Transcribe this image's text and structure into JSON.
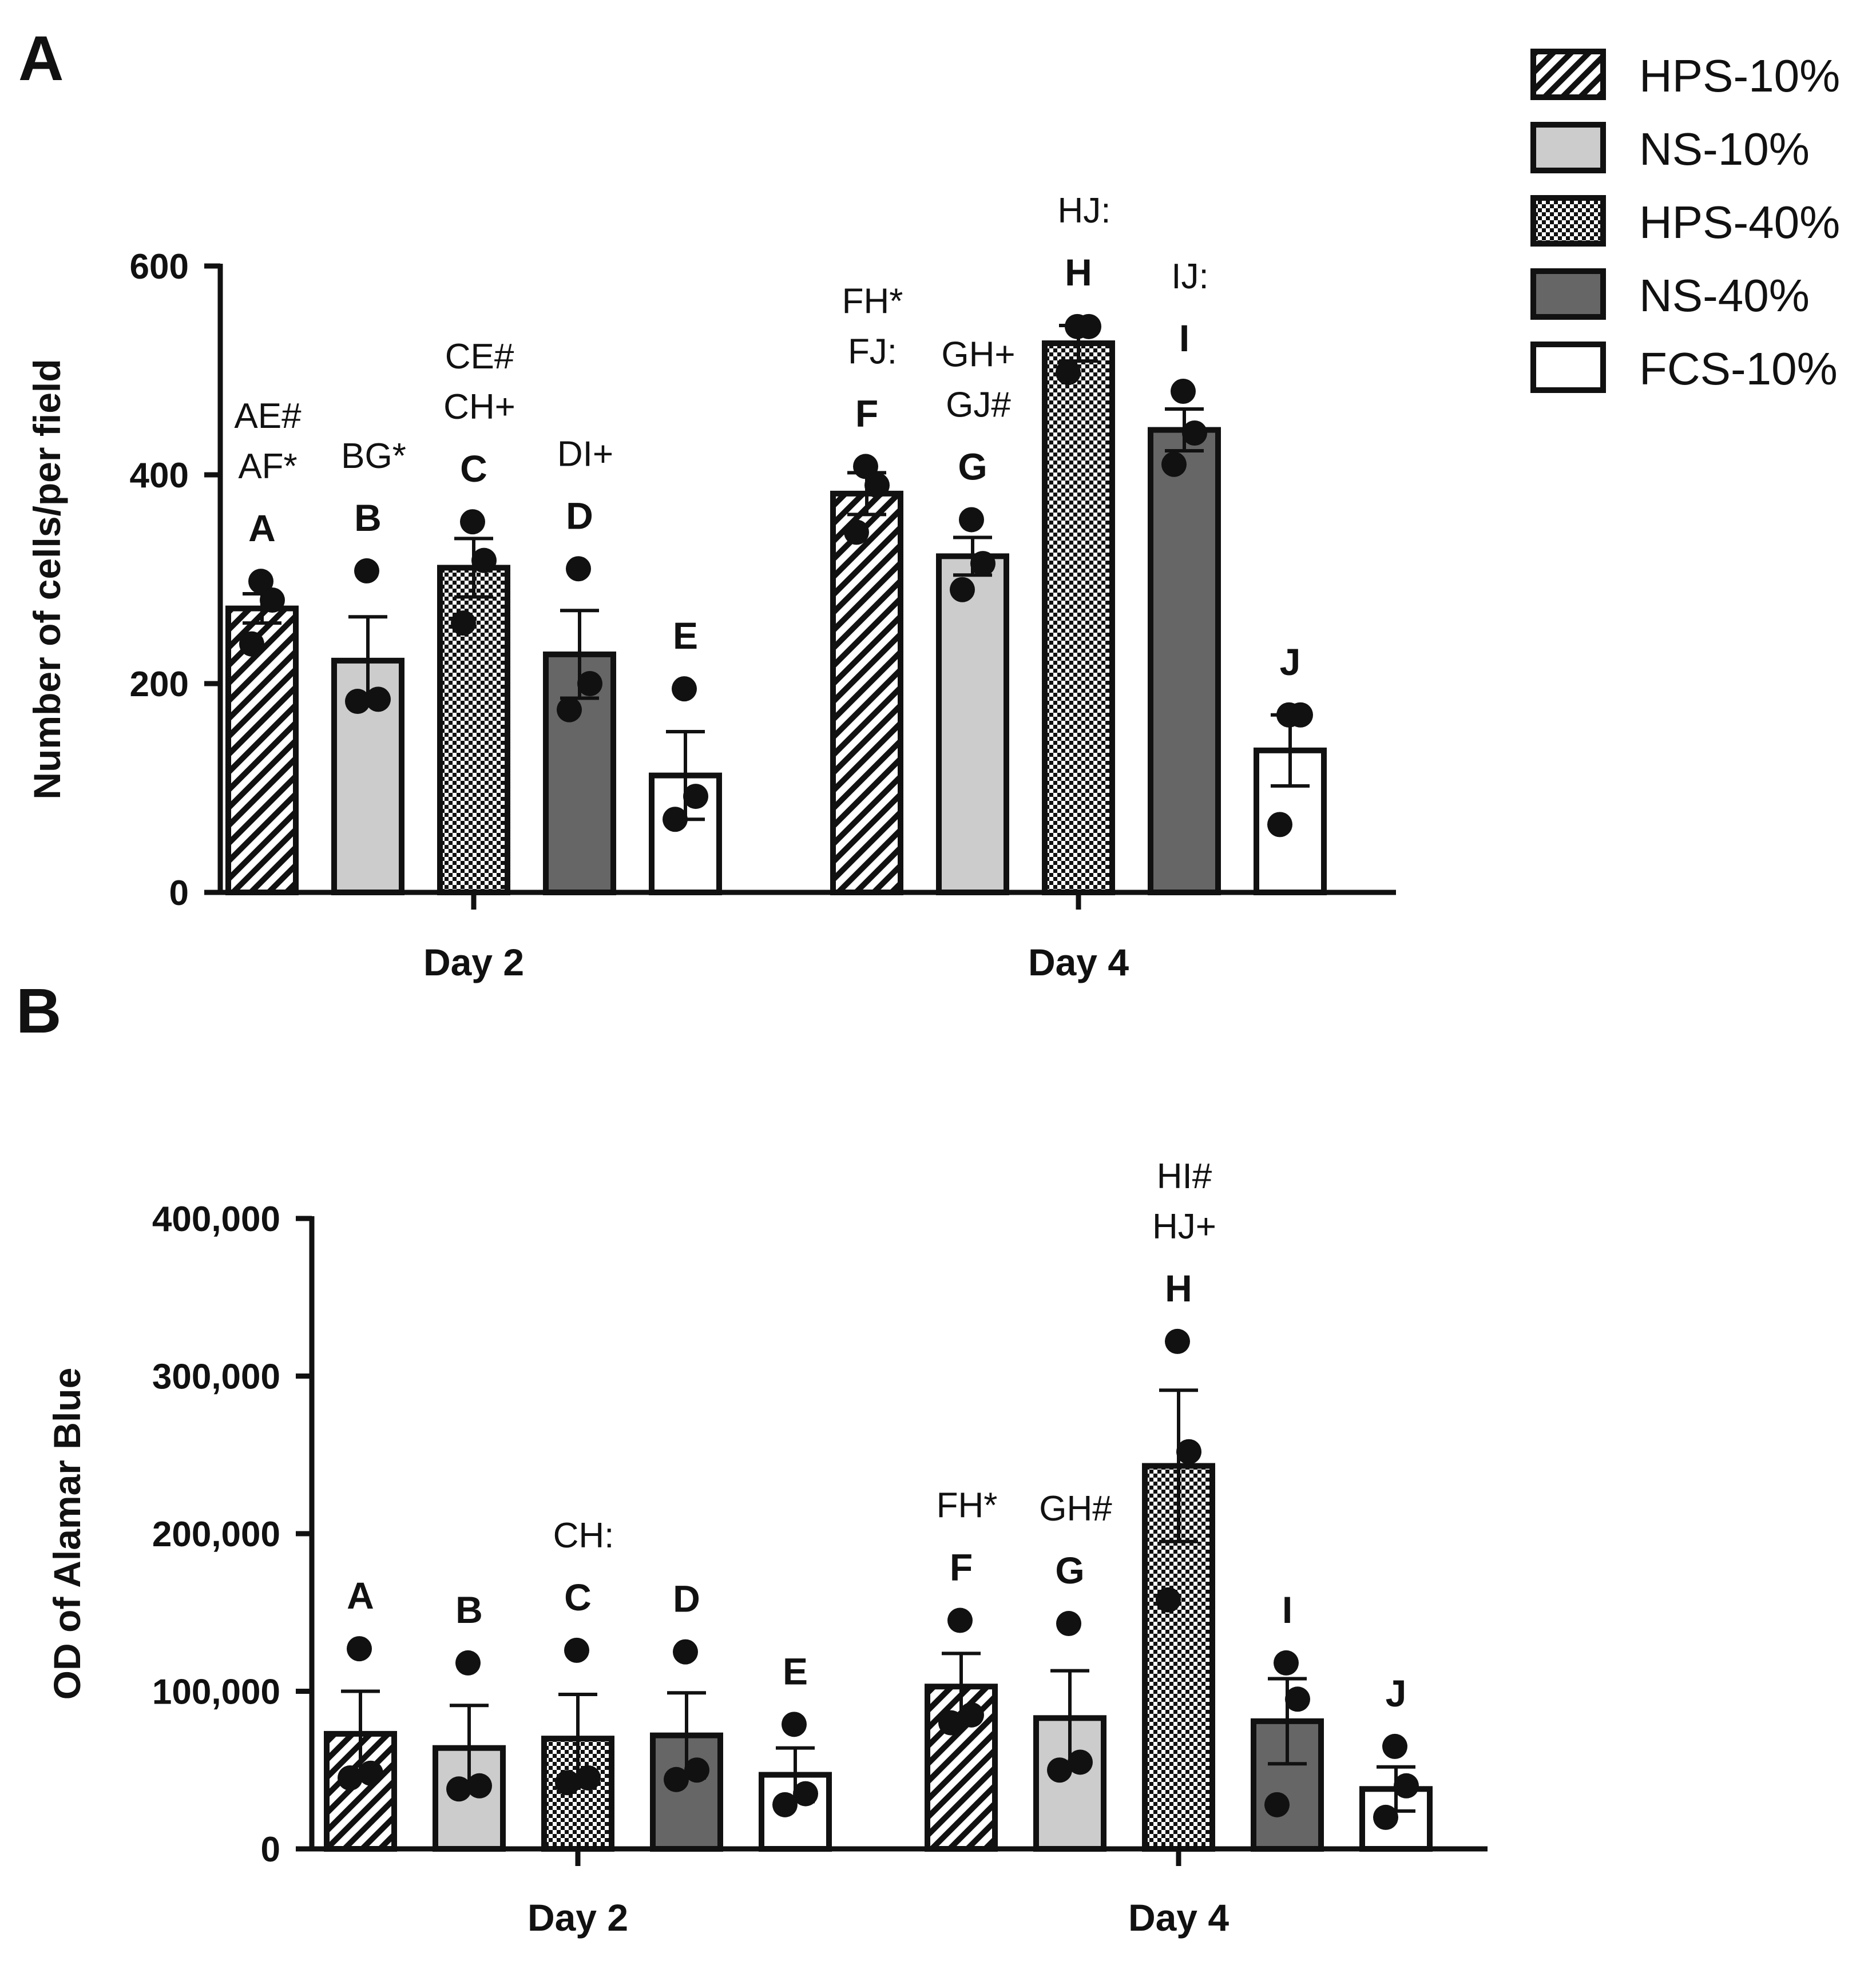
{
  "series": [
    {
      "key": "hps10",
      "name": "HPS-10%",
      "pattern": "hatch",
      "fill": "#ffffff"
    },
    {
      "key": "ns10",
      "name": "NS-10%",
      "pattern": "solid",
      "fill": "#cccccc"
    },
    {
      "key": "hps40",
      "name": "HPS-40%",
      "pattern": "checker",
      "fill": "#ffffff"
    },
    {
      "key": "ns40",
      "name": "NS-40%",
      "pattern": "solid",
      "fill": "#666666"
    },
    {
      "key": "fcs10",
      "name": "FCS-10%",
      "pattern": "solid",
      "fill": "#ffffff"
    }
  ],
  "chart_data": [
    {
      "panel": "A",
      "type": "bar",
      "ylabel": "Number of cells/per field",
      "ylim": [
        0,
        600
      ],
      "yticks": [
        0,
        200,
        400,
        600
      ],
      "ytick_labels": [
        "0",
        "200",
        "400",
        "600"
      ],
      "categories": [
        "Day 2",
        "Day 4"
      ],
      "bars": [
        {
          "group": 0,
          "series": 0,
          "letter": "A",
          "value": 272,
          "sem": 14,
          "points": [
            298,
            280,
            238
          ],
          "annotations": [
            "AE#",
            "AF*"
          ]
        },
        {
          "group": 0,
          "series": 1,
          "letter": "B",
          "value": 222,
          "sem": 42,
          "points": [
            308,
            185,
            183
          ],
          "annotations": [
            "BG*"
          ]
        },
        {
          "group": 0,
          "series": 2,
          "letter": "C",
          "value": 311,
          "sem": 28,
          "points": [
            355,
            318,
            258
          ],
          "annotations": [
            "CE#",
            "CH+"
          ]
        },
        {
          "group": 0,
          "series": 3,
          "letter": "D",
          "value": 228,
          "sem": 42,
          "points": [
            310,
            200,
            175
          ],
          "annotations": [
            "DI+"
          ]
        },
        {
          "group": 0,
          "series": 4,
          "letter": "E",
          "value": 112,
          "sem": 42,
          "points": [
            195,
            92,
            70
          ],
          "annotations": []
        },
        {
          "group": 1,
          "series": 0,
          "letter": "F",
          "value": 382,
          "sem": 20,
          "points": [
            408,
            390,
            345
          ],
          "annotations": [
            "FH*",
            "FJ:"
          ]
        },
        {
          "group": 1,
          "series": 1,
          "letter": "G",
          "value": 322,
          "sem": 18,
          "points": [
            357,
            315,
            290
          ],
          "annotations": [
            "GH+",
            "GJ#"
          ]
        },
        {
          "group": 1,
          "series": 2,
          "letter": "H",
          "value": 526,
          "sem": 17,
          "points": [
            542,
            542,
            498
          ],
          "annotations": [
            "HJ:"
          ]
        },
        {
          "group": 1,
          "series": 3,
          "letter": "I",
          "value": 443,
          "sem": 20,
          "points": [
            480,
            440,
            410
          ],
          "annotations": [
            "IJ:"
          ]
        },
        {
          "group": 1,
          "series": 4,
          "letter": "J",
          "value": 136,
          "sem": 34,
          "points": [
            170,
            170,
            65
          ],
          "annotations": []
        }
      ]
    },
    {
      "panel": "B",
      "type": "bar",
      "ylabel": "OD of Alamar Blue",
      "ylim": [
        0,
        400000
      ],
      "yticks": [
        0,
        100000,
        200000,
        300000,
        400000
      ],
      "ytick_labels": [
        "0",
        "100,000",
        "200,000",
        "300,000",
        "400,000"
      ],
      "categories": [
        "Day 2",
        "Day 4"
      ],
      "bars": [
        {
          "group": 0,
          "series": 0,
          "letter": "A",
          "value": 73000,
          "sem": 27000,
          "points": [
            127000,
            48000,
            45000
          ],
          "annotations": []
        },
        {
          "group": 0,
          "series": 1,
          "letter": "B",
          "value": 64000,
          "sem": 27000,
          "points": [
            118000,
            40000,
            38000
          ],
          "annotations": []
        },
        {
          "group": 0,
          "series": 2,
          "letter": "C",
          "value": 70000,
          "sem": 28000,
          "points": [
            126000,
            45000,
            42000
          ],
          "annotations": [
            "CH:"
          ]
        },
        {
          "group": 0,
          "series": 3,
          "letter": "D",
          "value": 72000,
          "sem": 27000,
          "points": [
            125000,
            50000,
            44000
          ],
          "annotations": []
        },
        {
          "group": 0,
          "series": 4,
          "letter": "E",
          "value": 47000,
          "sem": 17000,
          "points": [
            79000,
            35000,
            28000
          ],
          "annotations": []
        },
        {
          "group": 1,
          "series": 0,
          "letter": "F",
          "value": 103000,
          "sem": 21000,
          "points": [
            145000,
            85000,
            80000
          ],
          "annotations": [
            "FH*"
          ]
        },
        {
          "group": 1,
          "series": 1,
          "letter": "G",
          "value": 83000,
          "sem": 30000,
          "points": [
            143000,
            55000,
            50000
          ],
          "annotations": [
            "GH#"
          ]
        },
        {
          "group": 1,
          "series": 2,
          "letter": "H",
          "value": 243000,
          "sem": 48000,
          "points": [
            322000,
            252000,
            158000
          ],
          "annotations": [
            "HI#",
            "HJ+"
          ]
        },
        {
          "group": 1,
          "series": 3,
          "letter": "I",
          "value": 81000,
          "sem": 27000,
          "points": [
            118000,
            95000,
            28000
          ],
          "annotations": []
        },
        {
          "group": 1,
          "series": 4,
          "letter": "J",
          "value": 38000,
          "sem": 14000,
          "points": [
            65000,
            40000,
            20000
          ],
          "annotations": []
        }
      ]
    }
  ]
}
